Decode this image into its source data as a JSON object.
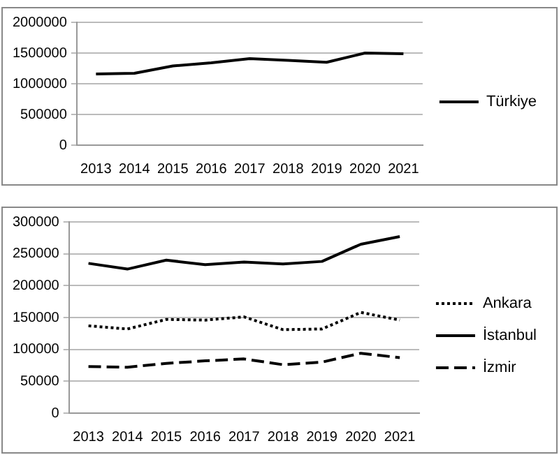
{
  "chart_data": [
    {
      "type": "line",
      "categories": [
        "2013",
        "2014",
        "2015",
        "2016",
        "2017",
        "2018",
        "2019",
        "2020",
        "2021"
      ],
      "series": [
        {
          "name": "Türkiye",
          "color": "#000000",
          "line_style": "solid",
          "values": [
            1160000,
            1170000,
            1290000,
            1340000,
            1410000,
            1380000,
            1350000,
            1500000,
            1490000
          ]
        }
      ],
      "ylim": [
        0,
        2000000
      ],
      "yticks": [
        0,
        500000,
        1000000,
        1500000,
        2000000
      ],
      "grid": "y",
      "legend": "right",
      "marker": "none"
    },
    {
      "type": "line",
      "categories": [
        "2013",
        "2014",
        "2015",
        "2016",
        "2017",
        "2018",
        "2019",
        "2020",
        "2021"
      ],
      "series": [
        {
          "name": "Ankara",
          "color": "#000000",
          "line_style": "dotted",
          "values": [
            137000,
            132000,
            147000,
            146000,
            151000,
            131000,
            132000,
            158000,
            146000
          ]
        },
        {
          "name": "İstanbul",
          "color": "#000000",
          "line_style": "solid",
          "values": [
            235000,
            226000,
            240000,
            233000,
            237000,
            234000,
            238000,
            265000,
            277000
          ]
        },
        {
          "name": "İzmir",
          "color": "#000000",
          "line_style": "dashed",
          "values": [
            73000,
            72000,
            78000,
            82000,
            85000,
            76000,
            80000,
            94000,
            87000
          ]
        }
      ],
      "ylim": [
        0,
        300000
      ],
      "yticks": [
        0,
        50000,
        100000,
        150000,
        200000,
        250000,
        300000
      ],
      "grid": "y",
      "legend": "right",
      "marker": "none"
    }
  ]
}
